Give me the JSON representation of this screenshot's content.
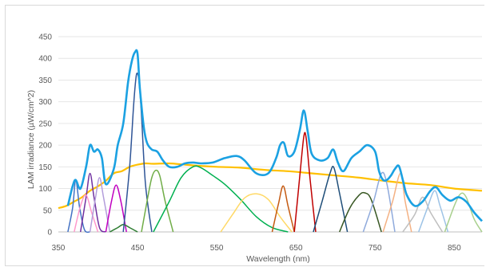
{
  "chart_data": {
    "type": "line",
    "xlabel": "Wavelength (nm)",
    "ylabel": "LAM irradiance (µW/cm^2)",
    "xlim": [
      350,
      885
    ],
    "ylim": [
      0,
      450
    ],
    "xticks": [
      350,
      450,
      550,
      650,
      750,
      850
    ],
    "yticks": [
      0,
      50,
      100,
      150,
      200,
      250,
      300,
      350,
      400,
      450
    ],
    "grid": "horizontal",
    "legend": "none",
    "sum_series": {
      "color": "#1ba1e2",
      "x": [
        362,
        368,
        372,
        378,
        385,
        390,
        395,
        400,
        405,
        410,
        420,
        425,
        432,
        438,
        443,
        447,
        450,
        453,
        458,
        462,
        468,
        475,
        482,
        490,
        500,
        510,
        520,
        530,
        545,
        560,
        575,
        585,
        600,
        615,
        625,
        630,
        635,
        640,
        648,
        655,
        660,
        665,
        670,
        680,
        690,
        697,
        703,
        710,
        720,
        730,
        740,
        750,
        755,
        760,
        765,
        770,
        775,
        780,
        785,
        790,
        800,
        810,
        820,
        827,
        835,
        845,
        855,
        865,
        875,
        885
      ],
      "y": [
        60,
        105,
        120,
        100,
        150,
        200,
        185,
        190,
        170,
        110,
        145,
        200,
        250,
        345,
        395,
        415,
        410,
        330,
        240,
        205,
        190,
        185,
        165,
        150,
        150,
        158,
        160,
        158,
        160,
        170,
        175,
        165,
        135,
        135,
        170,
        200,
        205,
        175,
        185,
        235,
        280,
        230,
        180,
        165,
        170,
        190,
        160,
        140,
        170,
        185,
        200,
        185,
        140,
        120,
        120,
        130,
        145,
        152,
        120,
        85,
        60,
        70,
        95,
        103,
        85,
        72,
        80,
        70,
        45,
        25
      ]
    },
    "series": [
      {
        "color": "#ffc000",
        "x": [
          350,
          360,
          370,
          380,
          390,
          400,
          410,
          420,
          430,
          440,
          450,
          460,
          470,
          490,
          510,
          530,
          550,
          580,
          610,
          640,
          670,
          700,
          730,
          760,
          790,
          820,
          850,
          885
        ],
        "y": [
          55,
          60,
          70,
          80,
          95,
          105,
          118,
          135,
          140,
          150,
          155,
          158,
          157,
          158,
          155,
          152,
          150,
          148,
          143,
          140,
          135,
          130,
          125,
          118,
          112,
          108,
          100,
          95
        ]
      },
      {
        "color": "#4472c4",
        "x": [
          362,
          368,
          372,
          377,
          383,
          390
        ],
        "y": [
          0,
          55,
          118,
          55,
          5,
          0
        ]
      },
      {
        "color": "#7030a0",
        "x": [
          378,
          385,
          390,
          395,
          402,
          410
        ],
        "y": [
          0,
          80,
          135,
          80,
          10,
          0
        ]
      },
      {
        "color": "#ff99cc",
        "x": [
          370,
          378,
          385,
          392,
          400
        ],
        "y": [
          0,
          60,
          85,
          45,
          0
        ]
      },
      {
        "color": "#b39ddb",
        "x": [
          390,
          397,
          402,
          407,
          415
        ],
        "y": [
          0,
          80,
          125,
          80,
          0
        ]
      },
      {
        "color": "#c000c0",
        "x": [
          410,
          417,
          423,
          429,
          436
        ],
        "y": [
          0,
          70,
          108,
          70,
          0
        ]
      },
      {
        "color": "#2e7d32",
        "x": [
          415,
          425,
          432,
          440,
          450
        ],
        "y": [
          0,
          10,
          17,
          10,
          0
        ]
      },
      {
        "color": "#2f5597",
        "x": [
          432,
          440,
          445,
          448,
          450,
          452,
          455,
          460,
          468
        ],
        "y": [
          0,
          150,
          290,
          355,
          365,
          345,
          270,
          110,
          0
        ]
      },
      {
        "color": "#70ad47",
        "x": [
          455,
          463,
          468,
          473,
          478,
          485,
          495
        ],
        "y": [
          0,
          80,
          125,
          142,
          130,
          70,
          0
        ]
      },
      {
        "color": "#00b050",
        "x": [
          470,
          490,
          505,
          520,
          530,
          545,
          560,
          580,
          600,
          620,
          640
        ],
        "y": [
          0,
          70,
          125,
          150,
          148,
          130,
          110,
          75,
          35,
          10,
          0
        ]
      },
      {
        "color": "#ffd966",
        "x": [
          555,
          570,
          585,
          600,
          615,
          630,
          645
        ],
        "y": [
          0,
          40,
          78,
          88,
          75,
          35,
          0
        ]
      },
      {
        "color": "#c55a11",
        "x": [
          620,
          628,
          634,
          640,
          648
        ],
        "y": [
          0,
          65,
          106,
          60,
          0
        ]
      },
      {
        "color": "#c00000",
        "x": [
          648,
          655,
          660,
          663,
          668,
          675
        ],
        "y": [
          0,
          130,
          220,
          215,
          120,
          0
        ]
      },
      {
        "color": "#1f4e79",
        "x": [
          672,
          683,
          693,
          698,
          705,
          715
        ],
        "y": [
          0,
          70,
          135,
          148,
          90,
          0
        ]
      },
      {
        "color": "#385723",
        "x": [
          705,
          718,
          730,
          737,
          745,
          758
        ],
        "y": [
          0,
          55,
          85,
          90,
          75,
          0
        ]
      },
      {
        "color": "#8faadc",
        "x": [
          735,
          748,
          758,
          765,
          775
        ],
        "y": [
          0,
          70,
          135,
          110,
          0
        ]
      },
      {
        "color": "#f4b183",
        "x": [
          760,
          772,
          782,
          788,
          796
        ],
        "y": [
          0,
          70,
          135,
          70,
          0
        ]
      },
      {
        "color": "#bfbfbf",
        "x": [
          785,
          800,
          810,
          820,
          835
        ],
        "y": [
          0,
          40,
          80,
          45,
          0
        ]
      },
      {
        "color": "#9dc3e6",
        "x": [
          805,
          815,
          825,
          832,
          842
        ],
        "y": [
          0,
          50,
          95,
          60,
          0
        ]
      },
      {
        "color": "#a9d08e",
        "x": [
          838,
          850,
          858,
          865,
          875,
          885
        ],
        "y": [
          0,
          60,
          88,
          80,
          30,
          0
        ]
      }
    ]
  }
}
